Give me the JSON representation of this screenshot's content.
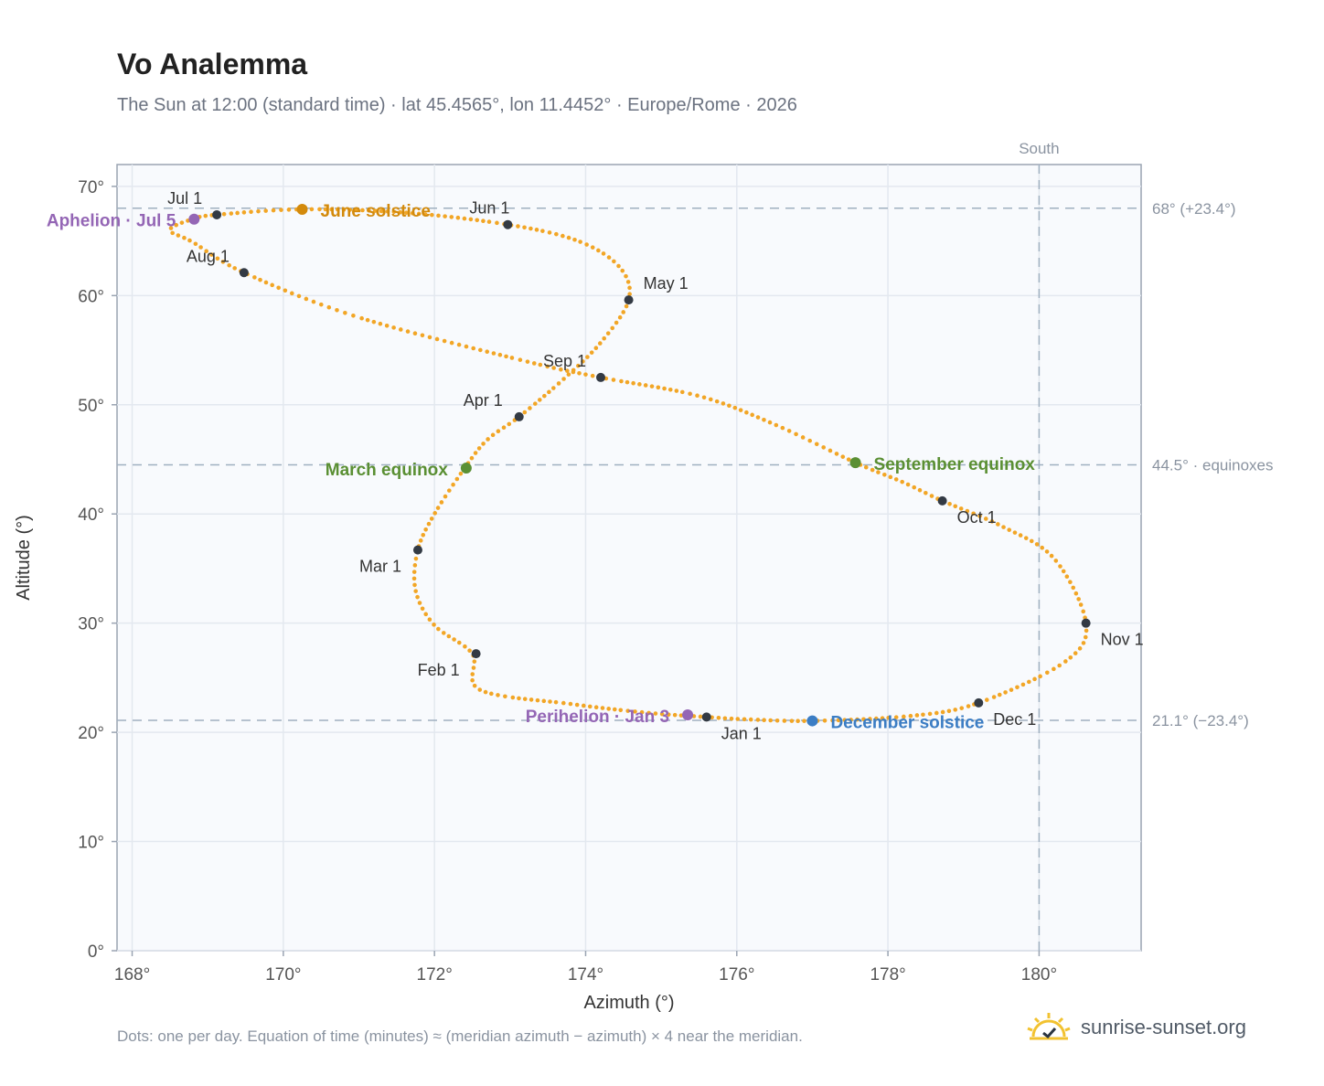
{
  "header": {
    "title": "Vo Analemma",
    "subtitle": "The Sun at 12:00 (standard time) · lat 45.4565°, lon 11.4452° · Europe/Rome · 2026"
  },
  "footer": {
    "note": "Dots: one per day. Equation of time (minutes) ≈ (meridian azimuth − azimuth) × 4 near the meridian.",
    "brand": "sunrise-sunset.org"
  },
  "colors": {
    "curve": "#f2a626",
    "month_marker": "#333a44",
    "solstice_june": "#d38a0c",
    "solstice_december": "#3b7dc4",
    "equinox": "#5a8f33",
    "aphelion_perihelion": "#9466b5",
    "plot_bg": "#f8fafd",
    "grid": "#e3e8ef",
    "reference_line": "#9fb0c0"
  },
  "chart_data": {
    "type": "scatter",
    "title": "Vo Analemma",
    "xlabel": "Azimuth (°)",
    "ylabel": "Altitude (°)",
    "xlim": [
      167.8,
      181.35
    ],
    "ylim": [
      0,
      72
    ],
    "xticks": [
      168,
      170,
      172,
      174,
      176,
      178,
      180
    ],
    "xtick_labels": [
      "168°",
      "170°",
      "172°",
      "174°",
      "176°",
      "178°",
      "180°"
    ],
    "yticks": [
      0,
      10,
      20,
      30,
      40,
      50,
      60,
      70
    ],
    "ytick_labels": [
      "0°",
      "10°",
      "20°",
      "30°",
      "40°",
      "50°",
      "60°",
      "70°"
    ],
    "grid": true,
    "curve_points": [
      [
        175.6,
        21.4
      ],
      [
        174.8,
        21.8
      ],
      [
        173.8,
        22.6
      ],
      [
        172.6,
        23.9
      ],
      [
        172.5,
        27.2
      ],
      [
        172.0,
        29.8
      ],
      [
        171.75,
        33.0
      ],
      [
        171.78,
        36.7
      ],
      [
        172.0,
        40.0
      ],
      [
        172.4,
        44.2
      ],
      [
        172.7,
        46.8
      ],
      [
        173.12,
        48.9
      ],
      [
        173.7,
        52.3
      ],
      [
        174.2,
        55.7
      ],
      [
        174.57,
        59.6
      ],
      [
        174.45,
        62.6
      ],
      [
        173.9,
        65.0
      ],
      [
        172.97,
        66.5
      ],
      [
        171.6,
        67.6
      ],
      [
        170.25,
        67.9
      ],
      [
        169.12,
        67.4
      ],
      [
        168.8,
        67.0
      ],
      [
        168.5,
        66.0
      ],
      [
        168.8,
        64.9
      ],
      [
        169.48,
        62.1
      ],
      [
        171.0,
        58.0
      ],
      [
        173.2,
        54.0
      ],
      [
        174.2,
        52.5
      ],
      [
        175.5,
        50.8
      ],
      [
        176.5,
        48.2
      ],
      [
        177.57,
        44.7
      ],
      [
        178.2,
        42.9
      ],
      [
        178.72,
        41.2
      ],
      [
        179.5,
        38.9
      ],
      [
        180.2,
        35.9
      ],
      [
        180.62,
        30.0
      ],
      [
        180.35,
        26.5
      ],
      [
        179.2,
        22.7
      ],
      [
        178.3,
        21.5
      ],
      [
        177.0,
        21.05
      ],
      [
        176.1,
        21.2
      ],
      [
        175.6,
        21.4
      ]
    ],
    "month_markers": [
      {
        "label": "Jan 1",
        "x": 175.6,
        "y": 21.4
      },
      {
        "label": "Feb 1",
        "x": 172.55,
        "y": 27.2
      },
      {
        "label": "Mar 1",
        "x": 171.78,
        "y": 36.7
      },
      {
        "label": "Apr 1",
        "x": 173.12,
        "y": 48.9
      },
      {
        "label": "May 1",
        "x": 174.57,
        "y": 59.6
      },
      {
        "label": "Jun 1",
        "x": 172.97,
        "y": 66.5
      },
      {
        "label": "Jul 1",
        "x": 169.12,
        "y": 67.4
      },
      {
        "label": "Aug 1",
        "x": 169.48,
        "y": 62.1
      },
      {
        "label": "Sep 1",
        "x": 174.2,
        "y": 52.5
      },
      {
        "label": "Oct 1",
        "x": 178.72,
        "y": 41.2
      },
      {
        "label": "Nov 1",
        "x": 180.62,
        "y": 30.0
      },
      {
        "label": "Dec 1",
        "x": 179.2,
        "y": 22.7
      }
    ],
    "events": [
      {
        "label": "June solstice",
        "x": 170.25,
        "y": 67.9,
        "kind": "solstice_june"
      },
      {
        "label": "December solstice",
        "x": 177.0,
        "y": 21.05,
        "kind": "solstice_december"
      },
      {
        "label": "March equinox",
        "x": 172.42,
        "y": 44.2,
        "kind": "equinox"
      },
      {
        "label": "September equinox",
        "x": 177.57,
        "y": 44.7,
        "kind": "equinox"
      },
      {
        "label": "Aphelion · Jul 5",
        "x": 168.82,
        "y": 67.0,
        "kind": "aphelion_perihelion"
      },
      {
        "label": "Perihelion · Jan 3",
        "x": 175.35,
        "y": 21.6,
        "kind": "aphelion_perihelion"
      }
    ],
    "reference_lines": [
      {
        "axis": "y",
        "value": 68.0,
        "label": "68° (+23.4°)"
      },
      {
        "axis": "y",
        "value": 44.5,
        "label": "44.5° · equinoxes"
      },
      {
        "axis": "y",
        "value": 21.1,
        "label": "21.1° (−23.4°)"
      },
      {
        "axis": "x",
        "value": 180,
        "label": "South"
      }
    ]
  }
}
